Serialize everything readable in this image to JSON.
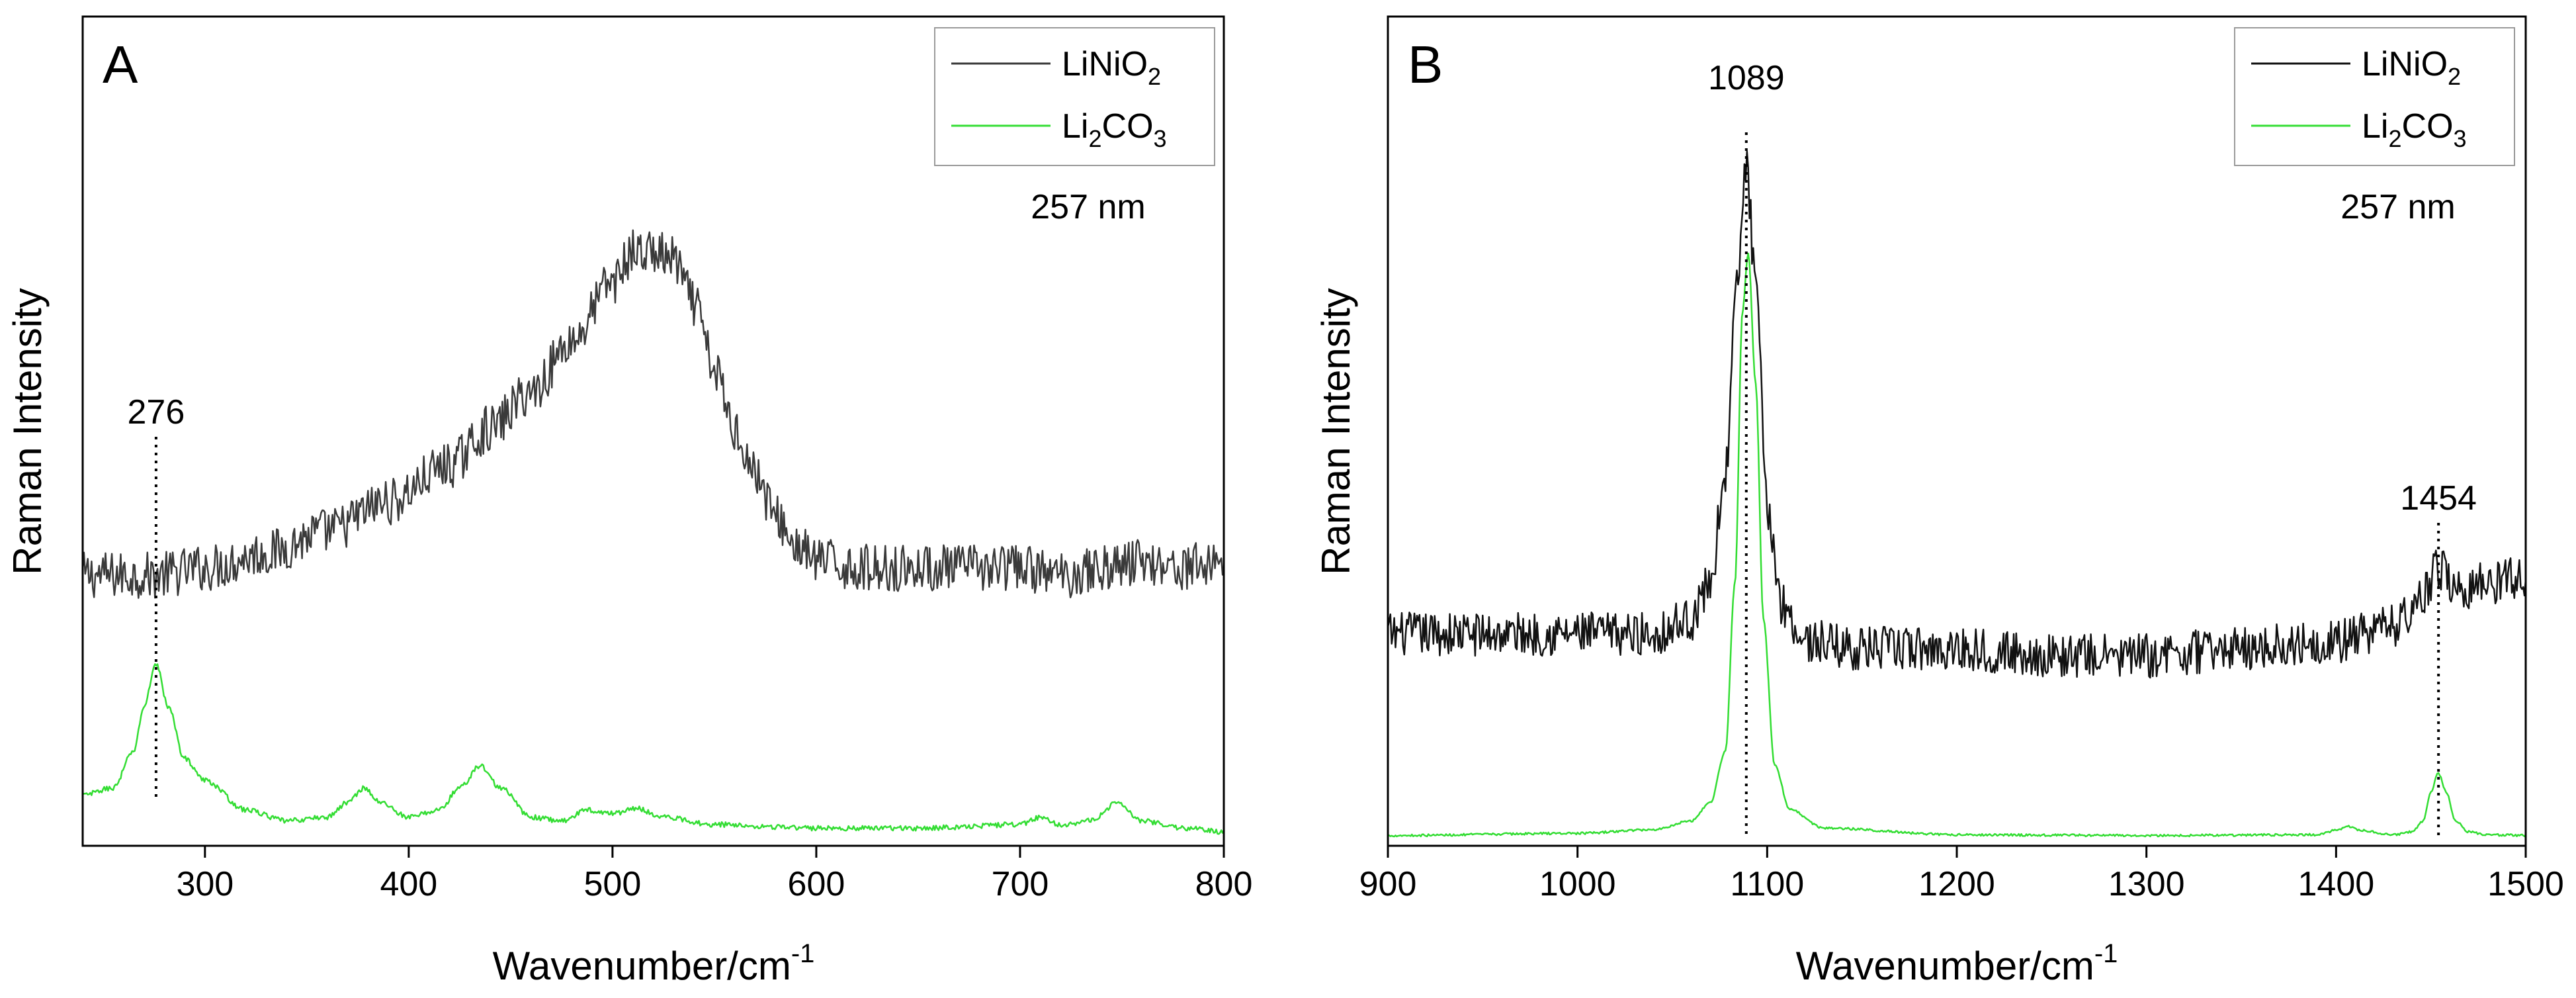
{
  "chart_data": [
    {
      "type": "line",
      "panel_label": "A",
      "xlabel": "Wavenumber/cm",
      "xlabel_sup": "-1",
      "ylabel": "Raman Intensity",
      "xlim": [
        240,
        800
      ],
      "ylim": [
        0,
        100
      ],
      "xticks": [
        300,
        400,
        500,
        600,
        700,
        800
      ],
      "xtick_labels": [
        "300",
        "400",
        "500",
        "600",
        "700",
        "800"
      ],
      "note": "257 nm",
      "legend": [
        {
          "label": "LiNiO",
          "sub": "2",
          "color": "#3a3a3a"
        },
        {
          "label": "Li",
          "sub": "2",
          "label2": "CO",
          "sub2": "3",
          "color": "#33dd33"
        }
      ],
      "annotations": [
        {
          "x": 276,
          "label": "276"
        }
      ],
      "series": [
        {
          "name": "LiNiO2",
          "color": "#3a3a3a",
          "noise": 3.2,
          "x": [
            240,
            260,
            276,
            300,
            330,
            360,
            390,
            420,
            440,
            460,
            480,
            500,
            510,
            520,
            530,
            540,
            550,
            560,
            570,
            580,
            590,
            600,
            620,
            650,
            680,
            700,
            720,
            740,
            760,
            780,
            800
          ],
          "values": [
            36,
            36,
            36,
            37,
            39,
            42,
            46,
            51,
            56,
            61,
            68,
            76,
            80,
            80,
            79,
            73,
            64,
            56,
            50,
            44,
            40,
            38,
            37,
            37,
            37,
            37,
            36,
            37,
            38,
            37,
            38
          ]
        },
        {
          "name": "Li2CO3",
          "color": "#33dd33",
          "noise": 0.35,
          "x": [
            240,
            255,
            265,
            270,
            276,
            282,
            290,
            300,
            320,
            340,
            360,
            370,
            378,
            386,
            400,
            415,
            425,
            435,
            445,
            460,
            475,
            488,
            500,
            512,
            525,
            550,
            600,
            650,
            700,
            710,
            720,
            735,
            748,
            760,
            780,
            800
          ],
          "values": [
            6,
            7,
            12,
            18,
            24,
            18,
            11,
            8,
            4,
            2.5,
            3,
            5,
            7,
            5,
            3,
            4,
            7,
            10,
            7,
            3,
            2.5,
            4,
            3.5,
            4.2,
            3,
            2,
            1.5,
            1.5,
            2,
            3,
            2,
            2.5,
            5,
            2.5,
            1.5,
            1
          ]
        }
      ]
    },
    {
      "type": "line",
      "panel_label": "B",
      "xlabel": "Wavenumber/cm",
      "xlabel_sup": "-1",
      "ylabel": "Raman Intensity",
      "xlim": [
        900,
        1500
      ],
      "ylim": [
        0,
        100
      ],
      "xticks": [
        900,
        1000,
        1100,
        1200,
        1300,
        1400,
        1500
      ],
      "xtick_labels": [
        "900",
        "1000",
        "1100",
        "1200",
        "1300",
        "1400",
        "1500"
      ],
      "note": "257 nm",
      "legend": [
        {
          "label": "LiNiO",
          "sub": "2",
          "color": "#111111"
        },
        {
          "label": "Li",
          "sub": "2",
          "label2": "CO",
          "sub2": "3",
          "color": "#33dd33"
        }
      ],
      "annotations": [
        {
          "x": 1089,
          "label": "1089"
        },
        {
          "x": 1454,
          "label": "1454"
        }
      ],
      "series": [
        {
          "name": "LiNiO2",
          "color": "#111111",
          "noise": 3.0,
          "x": [
            900,
            950,
            1000,
            1040,
            1060,
            1070,
            1078,
            1084,
            1089,
            1094,
            1100,
            1108,
            1120,
            1150,
            1200,
            1250,
            1300,
            1350,
            1400,
            1430,
            1445,
            1454,
            1465,
            1480,
            1500
          ],
          "values": [
            28,
            28,
            28,
            28,
            30,
            35,
            50,
            75,
            92,
            75,
            45,
            32,
            27,
            26,
            26,
            25,
            25,
            26,
            27,
            29,
            33,
            37,
            34,
            35,
            36
          ]
        },
        {
          "name": "Li2CO3",
          "color": "#33dd33",
          "noise": 0.15,
          "x": [
            900,
            1000,
            1040,
            1060,
            1070,
            1078,
            1083,
            1087,
            1090,
            1094,
            1098,
            1104,
            1112,
            1130,
            1200,
            1300,
            1390,
            1400,
            1406,
            1412,
            1430,
            1440,
            1446,
            1450,
            1454,
            1458,
            1463,
            1470,
            1480,
            1500
          ],
          "values": [
            0.5,
            0.8,
            1.3,
            2.5,
            5,
            12,
            35,
            72,
            80,
            62,
            30,
            10,
            4,
            1.5,
            0.6,
            0.5,
            0.6,
            1.2,
            1.8,
            1.2,
            0.6,
            1.0,
            2.5,
            6.5,
            9,
            6.5,
            2.5,
            1.0,
            0.6,
            0.5
          ]
        }
      ]
    }
  ]
}
